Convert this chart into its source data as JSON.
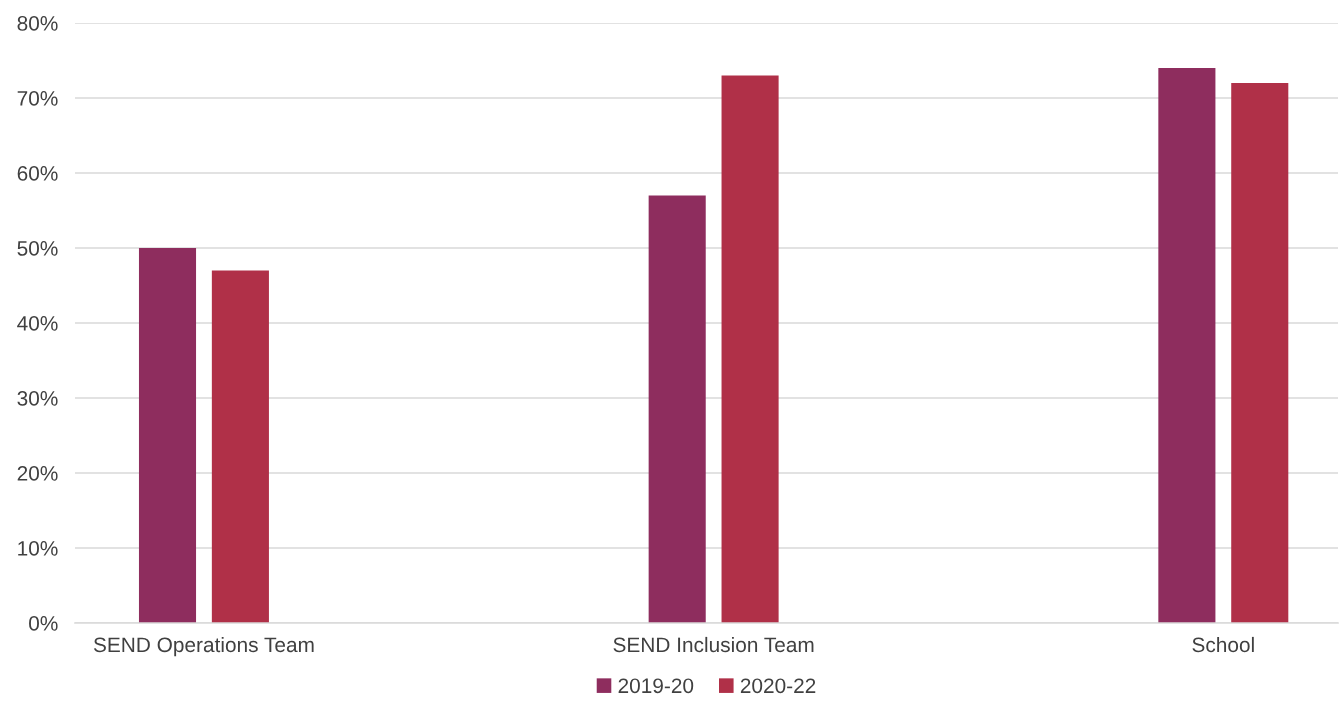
{
  "chart_data": {
    "type": "bar",
    "categories": [
      "SEND Operations Team",
      "SEND Inclusion Team",
      "School"
    ],
    "series": [
      {
        "name": "2019-20",
        "color": "#8e2d5e",
        "values": [
          50,
          57,
          74
        ]
      },
      {
        "name": "2020-22",
        "color": "#b03048",
        "values": [
          47,
          73,
          72
        ]
      }
    ],
    "ylim": [
      0,
      80
    ],
    "yticks": [
      {
        "value": 0,
        "label": "0%"
      },
      {
        "value": 10,
        "label": "10%"
      },
      {
        "value": 20,
        "label": "20%"
      },
      {
        "value": 30,
        "label": "30%"
      },
      {
        "value": 40,
        "label": "40%"
      },
      {
        "value": 50,
        "label": "50%"
      },
      {
        "value": 60,
        "label": "60%"
      },
      {
        "value": 70,
        "label": "70%"
      },
      {
        "value": 80,
        "label": "80%"
      }
    ],
    "grid": "y",
    "legend": "bottom"
  }
}
